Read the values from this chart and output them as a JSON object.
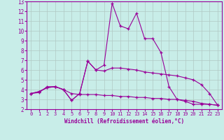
{
  "xlabel": "Windchill (Refroidissement éolien,°C)",
  "bg_color": "#c8ede8",
  "grid_color": "#b0c8c4",
  "line_color": "#990099",
  "xlim": [
    -0.5,
    23.5
  ],
  "ylim": [
    2,
    13
  ],
  "yticks": [
    2,
    3,
    4,
    5,
    6,
    7,
    8,
    9,
    10,
    11,
    12,
    13
  ],
  "xticks": [
    0,
    1,
    2,
    3,
    4,
    5,
    6,
    7,
    8,
    9,
    10,
    11,
    12,
    13,
    14,
    15,
    16,
    17,
    18,
    19,
    20,
    21,
    22,
    23
  ],
  "series": [
    {
      "x": [
        0,
        1,
        2,
        3,
        4,
        5,
        6,
        7,
        8,
        9,
        10,
        11,
        12,
        13,
        14,
        15,
        16,
        17,
        18,
        19,
        20,
        21,
        22,
        23
      ],
      "y": [
        3.6,
        3.7,
        4.3,
        4.3,
        4.0,
        3.6,
        3.5,
        3.5,
        3.5,
        3.4,
        3.4,
        3.3,
        3.3,
        3.2,
        3.2,
        3.1,
        3.1,
        3.0,
        3.0,
        2.9,
        2.8,
        2.6,
        2.5,
        2.4
      ]
    },
    {
      "x": [
        0,
        1,
        2,
        3,
        4,
        5,
        6,
        7,
        8,
        9,
        10,
        11,
        12,
        13,
        14,
        15,
        16,
        17,
        18,
        19,
        20,
        21,
        22,
        23
      ],
      "y": [
        3.6,
        3.8,
        4.2,
        4.3,
        4.0,
        2.9,
        3.6,
        6.9,
        6.0,
        5.9,
        6.2,
        6.2,
        6.1,
        6.0,
        5.8,
        5.7,
        5.6,
        5.5,
        5.4,
        5.2,
        5.0,
        4.5,
        3.6,
        2.4
      ]
    },
    {
      "x": [
        0,
        1,
        2,
        3,
        4,
        5,
        6,
        7,
        8,
        9,
        10,
        11,
        12,
        13,
        14,
        15,
        16,
        17,
        18,
        19,
        20,
        21,
        22,
        23
      ],
      "y": [
        3.6,
        3.8,
        4.2,
        4.3,
        4.0,
        2.9,
        3.6,
        6.9,
        6.0,
        6.5,
        12.8,
        10.5,
        10.2,
        11.8,
        9.2,
        9.2,
        7.8,
        4.3,
        3.0,
        2.8,
        2.5,
        2.5,
        2.5,
        2.4
      ]
    }
  ]
}
